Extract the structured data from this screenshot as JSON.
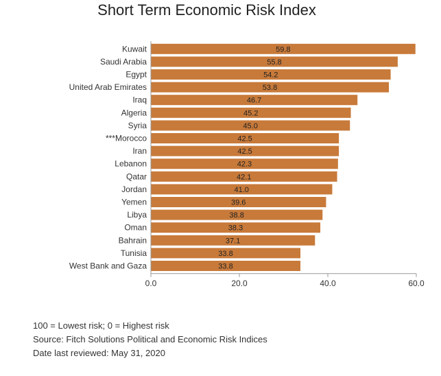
{
  "chart_data": {
    "type": "bar",
    "orientation": "horizontal",
    "title": "Short Term Economic Risk Index",
    "categories": [
      "Kuwait",
      "Saudi Arabia",
      "Egypt",
      "United Arab Emirates",
      "Iraq",
      "Algeria",
      "Syria",
      "***Morocco",
      "Iran",
      "Lebanon",
      "Qatar",
      "Jordan",
      "Yemen",
      "Libya",
      "Oman",
      "Bahrain",
      "Tunisia",
      "West Bank and Gaza"
    ],
    "values": [
      59.8,
      55.8,
      54.2,
      53.8,
      46.7,
      45.2,
      45.0,
      42.5,
      42.5,
      42.3,
      42.1,
      41.0,
      39.6,
      38.8,
      38.3,
      37.1,
      33.8,
      33.8
    ],
    "value_labels": [
      "59.8",
      "55.8",
      "54.2",
      "53.8",
      "46.7",
      "45.2",
      "45.0",
      "42.5",
      "42.5",
      "42.3",
      "42.1",
      "41.0",
      "39.6",
      "38.8",
      "38.3",
      "37.1",
      "33.8",
      "33.8"
    ],
    "xlim": [
      0,
      60
    ],
    "xticks": [
      "0.0",
      "20.0",
      "40.0",
      "60.0"
    ],
    "xtick_values": [
      0,
      20,
      40,
      60
    ],
    "bar_color": "#c87a3a",
    "grid": false,
    "legend": "none"
  },
  "notes": {
    "scale": "100 = Lowest risk; 0 = Highest risk",
    "source": "Source: Fitch Solutions Political and Economic Risk Indices",
    "date": "Date last reviewed: May 31, 2020"
  }
}
